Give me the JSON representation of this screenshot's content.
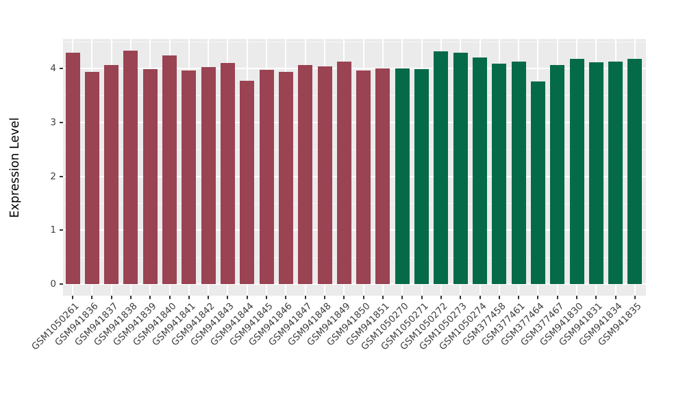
{
  "chart_data": {
    "type": "bar",
    "title": "",
    "xlabel": "",
    "ylabel": "Expression Level",
    "ylim": [
      0,
      4.55
    ],
    "y_ticks": [
      0,
      1,
      2,
      3,
      4
    ],
    "grid": true,
    "legend_position": "none",
    "panel_bg": "#EBEBEB",
    "grid_major_color": "#FFFFFF",
    "grid_minor_color": "#F7F7F7",
    "group_colors": {
      "red": "#9A4352",
      "green": "#046A47"
    },
    "bars": [
      {
        "label": "GSM1050261",
        "value": 4.29,
        "group": "red"
      },
      {
        "label": "GSM941836",
        "value": 3.94,
        "group": "red"
      },
      {
        "label": "GSM941837",
        "value": 4.06,
        "group": "red"
      },
      {
        "label": "GSM941838",
        "value": 4.33,
        "group": "red"
      },
      {
        "label": "GSM941839",
        "value": 3.99,
        "group": "red"
      },
      {
        "label": "GSM941840",
        "value": 4.24,
        "group": "red"
      },
      {
        "label": "GSM941841",
        "value": 3.96,
        "group": "red"
      },
      {
        "label": "GSM941842",
        "value": 4.03,
        "group": "red"
      },
      {
        "label": "GSM941843",
        "value": 4.1,
        "group": "red"
      },
      {
        "label": "GSM941844",
        "value": 3.77,
        "group": "red"
      },
      {
        "label": "GSM941845",
        "value": 3.98,
        "group": "red"
      },
      {
        "label": "GSM941846",
        "value": 3.94,
        "group": "red"
      },
      {
        "label": "GSM941847",
        "value": 4.06,
        "group": "red"
      },
      {
        "label": "GSM941848",
        "value": 4.04,
        "group": "red"
      },
      {
        "label": "GSM941849",
        "value": 4.13,
        "group": "red"
      },
      {
        "label": "GSM941850",
        "value": 3.96,
        "group": "red"
      },
      {
        "label": "GSM941851",
        "value": 4.0,
        "group": "red"
      },
      {
        "label": "GSM1050270",
        "value": 4.0,
        "group": "green"
      },
      {
        "label": "GSM1050271",
        "value": 3.99,
        "group": "green"
      },
      {
        "label": "GSM1050272",
        "value": 4.32,
        "group": "green"
      },
      {
        "label": "GSM1050273",
        "value": 4.3,
        "group": "green"
      },
      {
        "label": "GSM1050274",
        "value": 4.2,
        "group": "green"
      },
      {
        "label": "GSM377458",
        "value": 4.09,
        "group": "green"
      },
      {
        "label": "GSM377461",
        "value": 4.13,
        "group": "green"
      },
      {
        "label": "GSM377464",
        "value": 3.76,
        "group": "green"
      },
      {
        "label": "GSM377467",
        "value": 4.06,
        "group": "green"
      },
      {
        "label": "GSM941830",
        "value": 4.18,
        "group": "green"
      },
      {
        "label": "GSM941831",
        "value": 4.11,
        "group": "green"
      },
      {
        "label": "GSM941834",
        "value": 4.13,
        "group": "green"
      },
      {
        "label": "GSM941835",
        "value": 4.18,
        "group": "green"
      }
    ]
  }
}
